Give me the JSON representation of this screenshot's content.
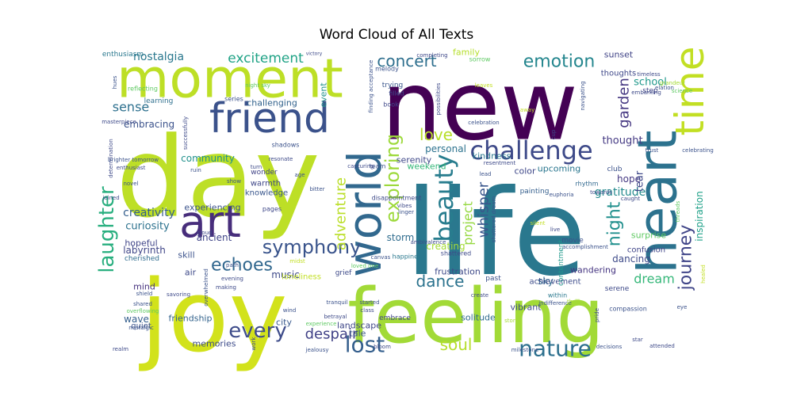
{
  "chart_data": {
    "type": "wordcloud",
    "title": "Word Cloud of All Texts",
    "colors": [
      "#440154",
      "#3b528b",
      "#21918c",
      "#5ec962",
      "#fde725"
    ],
    "words": [
      {
        "text": "new",
        "weight": 1.0,
        "color": "#440154"
      },
      {
        "text": "life",
        "weight": 0.96,
        "color": "#2a788e"
      },
      {
        "text": "day",
        "weight": 0.9,
        "color": "#bddf26"
      },
      {
        "text": "joy",
        "weight": 0.86,
        "color": "#d2e21b"
      },
      {
        "text": "feeling",
        "weight": 0.78,
        "color": "#a2da37"
      },
      {
        "text": "moment",
        "weight": 0.7,
        "color": "#bddf26"
      },
      {
        "text": "heart",
        "weight": 0.52,
        "color": "#2c728e"
      },
      {
        "text": "friend",
        "weight": 0.46,
        "color": "#3b528b"
      },
      {
        "text": "time",
        "weight": 0.44,
        "color": "#c2df23"
      },
      {
        "text": "art",
        "weight": 0.42,
        "color": "#472d7b"
      },
      {
        "text": "world",
        "weight": 0.4,
        "color": "#31688e"
      },
      {
        "text": "challenge",
        "weight": 0.3,
        "color": "#3e4a89"
      },
      {
        "text": "nature",
        "weight": 0.27,
        "color": "#2d708e"
      },
      {
        "text": "beauty",
        "weight": 0.26,
        "color": "#287d8e"
      },
      {
        "text": "every",
        "weight": 0.25,
        "color": "#3e4c8a"
      },
      {
        "text": "laughter",
        "weight": 0.24,
        "color": "#29af7f"
      },
      {
        "text": "lost",
        "weight": 0.24,
        "color": "#355f8d"
      },
      {
        "text": "journey",
        "weight": 0.23,
        "color": "#404588"
      },
      {
        "text": "symphony",
        "weight": 0.22,
        "color": "#3a548c"
      },
      {
        "text": "emotion",
        "weight": 0.21,
        "color": "#24868e"
      },
      {
        "text": "concert",
        "weight": 0.21,
        "color": "#2e6f8e"
      },
      {
        "text": "exploring",
        "weight": 0.21,
        "color": "#9dd93b"
      },
      {
        "text": "night",
        "weight": 0.21,
        "color": "#21908d"
      },
      {
        "text": "dance",
        "weight": 0.21,
        "color": "#2c738e"
      },
      {
        "text": "soul",
        "weight": 0.21,
        "color": "#b5de2b"
      },
      {
        "text": "echoes",
        "weight": 0.2,
        "color": "#31678e"
      },
      {
        "text": "despair",
        "weight": 0.19,
        "color": "#414287"
      },
      {
        "text": "dream",
        "weight": 0.18,
        "color": "#35b779"
      },
      {
        "text": "excitement",
        "weight": 0.18,
        "color": "#20a386"
      },
      {
        "text": "adventure",
        "weight": 0.17,
        "color": "#bade28"
      },
      {
        "text": "whisper",
        "weight": 0.17,
        "color": "#39568c"
      },
      {
        "text": "garden",
        "weight": 0.16,
        "color": "#453781"
      },
      {
        "text": "love",
        "weight": 0.15,
        "color": "#b8de29"
      },
      {
        "text": "sense",
        "weight": 0.14,
        "color": "#2d708e"
      },
      {
        "text": "project",
        "weight": 0.14,
        "color": "#95d840"
      },
      {
        "text": "creativity",
        "weight": 0.13,
        "color": "#355f8d"
      },
      {
        "text": "nostalgia",
        "weight": 0.12,
        "color": "#2a788e"
      },
      {
        "text": "gratitude",
        "weight": 0.12,
        "color": "#238a8d"
      },
      {
        "text": "thought",
        "weight": 0.12,
        "color": "#443983"
      },
      {
        "text": "curiosity",
        "weight": 0.11,
        "color": "#2c728e"
      },
      {
        "text": "school",
        "weight": 0.11,
        "color": "#1f988b"
      },
      {
        "text": "embracing",
        "weight": 0.1,
        "color": "#3b528b"
      },
      {
        "text": "labyrinth",
        "weight": 0.1,
        "color": "#404688"
      },
      {
        "text": "community",
        "weight": 0.1,
        "color": "#21918c"
      },
      {
        "text": "hope",
        "weight": 0.1,
        "color": "#453882"
      },
      {
        "text": "tear",
        "weight": 0.1,
        "color": "#3f4889"
      },
      {
        "text": "ancient",
        "weight": 0.1,
        "color": "#404588"
      },
      {
        "text": "music",
        "weight": 0.09,
        "color": "#3e4989"
      },
      {
        "text": "personal",
        "weight": 0.09,
        "color": "#2c728e"
      },
      {
        "text": "wave",
        "weight": 0.09,
        "color": "#355f8d"
      },
      {
        "text": "sky",
        "weight": 0.09,
        "color": "#31688e"
      },
      {
        "text": "inspiration",
        "weight": 0.09,
        "color": "#1fa188"
      },
      {
        "text": "storm",
        "weight": 0.09,
        "color": "#2f6c8e"
      },
      {
        "text": "dancing",
        "weight": 0.09,
        "color": "#3e4a89"
      },
      {
        "text": "challenging",
        "weight": 0.08,
        "color": "#33638d"
      },
      {
        "text": "upcoming",
        "weight": 0.08,
        "color": "#2a768e"
      },
      {
        "text": "sunset",
        "weight": 0.08,
        "color": "#414487"
      },
      {
        "text": "kindness",
        "weight": 0.08,
        "color": "#2a788e"
      },
      {
        "text": "creating",
        "weight": 0.08,
        "color": "#a5db36"
      },
      {
        "text": "experiencing",
        "weight": 0.08,
        "color": "#3b528b"
      },
      {
        "text": "color",
        "weight": 0.08,
        "color": "#3f4889"
      },
      {
        "text": "memories",
        "weight": 0.08,
        "color": "#3e4c8a"
      },
      {
        "text": "city",
        "weight": 0.08,
        "color": "#38588c"
      },
      {
        "text": "hopeful",
        "weight": 0.08,
        "color": "#404588"
      },
      {
        "text": "landscape",
        "weight": 0.07,
        "color": "#3f4788"
      },
      {
        "text": "solitude",
        "weight": 0.07,
        "color": "#2f6b8e"
      },
      {
        "text": "vibrant",
        "weight": 0.07,
        "color": "#3e4a89"
      },
      {
        "text": "friendship",
        "weight": 0.07,
        "color": "#33638d"
      },
      {
        "text": "family",
        "weight": 0.07,
        "color": "#b5de2b"
      },
      {
        "text": "surprise",
        "weight": 0.07,
        "color": "#5ec962"
      },
      {
        "text": "tale",
        "weight": 0.07,
        "color": "#3a548c"
      },
      {
        "text": "wandering",
        "weight": 0.07,
        "color": "#453581"
      },
      {
        "text": "mind",
        "weight": 0.07,
        "color": "#46327e"
      },
      {
        "text": "skill",
        "weight": 0.07,
        "color": "#3b528b"
      },
      {
        "text": "weekend",
        "weight": 0.07,
        "color": "#35b779"
      },
      {
        "text": "serenity",
        "weight": 0.07,
        "color": "#3f4889"
      },
      {
        "text": "frustration",
        "weight": 0.07,
        "color": "#3e4a89"
      },
      {
        "text": "knowledge",
        "weight": 0.06,
        "color": "#39568c"
      },
      {
        "text": "warmth",
        "weight": 0.06,
        "color": "#3f4788"
      },
      {
        "text": "confusion",
        "weight": 0.06,
        "color": "#404588"
      },
      {
        "text": "achievement",
        "weight": 0.06,
        "color": "#3e4c8a"
      },
      {
        "text": "air",
        "weight": 0.06,
        "color": "#3e4a89"
      },
      {
        "text": "quiet",
        "weight": 0.06,
        "color": "#3b528b"
      },
      {
        "text": "thoughts",
        "weight": 0.06,
        "color": "#3f4889"
      },
      {
        "text": "cherished",
        "weight": 0.05,
        "color": "#2f6c8e"
      },
      {
        "text": "event",
        "weight": 0.05,
        "color": "#21918c"
      },
      {
        "text": "step",
        "weight": 0.05,
        "color": "#404688"
      },
      {
        "text": "learning",
        "weight": 0.05,
        "color": "#2e6f8e"
      },
      {
        "text": "wonder",
        "weight": 0.05,
        "color": "#414487"
      },
      {
        "text": "painting",
        "weight": 0.05,
        "color": "#355f8d"
      },
      {
        "text": "enthusiasm",
        "weight": 0.05,
        "color": "#2a788e"
      },
      {
        "text": "rhythm",
        "weight": 0.05,
        "color": "#31688e"
      },
      {
        "text": "club",
        "weight": 0.05,
        "color": "#3b528b"
      },
      {
        "text": "trying",
        "weight": 0.05,
        "color": "#39568c"
      },
      {
        "text": "pages",
        "weight": 0.05,
        "color": "#3f4889"
      },
      {
        "text": "grief",
        "weight": 0.05,
        "color": "#3e4a89"
      },
      {
        "text": "past",
        "weight": 0.05,
        "color": "#3b528b"
      },
      {
        "text": "embrace",
        "weight": 0.05,
        "color": "#404588"
      },
      {
        "text": "contentment",
        "weight": 0.05,
        "color": "#1f988b"
      },
      {
        "text": "within",
        "weight": 0.05,
        "color": "#2a788e"
      },
      {
        "text": "movie",
        "weight": 0.05,
        "color": "#3b528b"
      },
      {
        "text": "serene",
        "weight": 0.05,
        "color": "#3e4a89"
      },
      {
        "text": "compassion",
        "weight": 0.05,
        "color": "#3b528b"
      },
      {
        "text": "loneliness",
        "weight": 0.05,
        "color": "#c2df23"
      },
      {
        "text": "filled",
        "weight": 0.04,
        "color": "#3e4a89"
      },
      {
        "text": "book",
        "weight": 0.04,
        "color": "#3f4889"
      },
      {
        "text": "shadows",
        "weight": 0.04,
        "color": "#3b528b"
      },
      {
        "text": "team",
        "weight": 0.04,
        "color": "#3b528b"
      },
      {
        "text": "happiness",
        "weight": 0.04,
        "color": "#2a788e"
      },
      {
        "text": "shattered",
        "weight": 0.04,
        "color": "#3e4a89"
      },
      {
        "text": "sorrow",
        "weight": 0.04,
        "color": "#5ec962"
      },
      {
        "text": "melody",
        "weight": 0.04,
        "color": "#3b528b"
      },
      {
        "text": "completing",
        "weight": 0.04,
        "color": "#3f4889"
      },
      {
        "text": "elation",
        "weight": 0.04,
        "color": "#3b528b"
      },
      {
        "text": "embarking",
        "weight": 0.04,
        "color": "#3e4a89"
      },
      {
        "text": "reflecting",
        "weight": 0.04,
        "color": "#5ec962"
      },
      {
        "text": "series",
        "weight": 0.04,
        "color": "#3b528b"
      },
      {
        "text": "victory",
        "weight": 0.04,
        "color": "#3e4a89"
      },
      {
        "text": "ruin",
        "weight": 0.04,
        "color": "#3b528b"
      },
      {
        "text": "turn",
        "weight": 0.04,
        "color": "#3e4a89"
      },
      {
        "text": "show",
        "weight": 0.04,
        "color": "#3b528b"
      },
      {
        "text": "joined",
        "weight": 0.04,
        "color": "#3e4a89"
      },
      {
        "text": "nostalgic",
        "weight": 0.04,
        "color": "#3b528b"
      },
      {
        "text": "savoring",
        "weight": 0.04,
        "color": "#3e4a89"
      },
      {
        "text": "path",
        "weight": 0.04,
        "color": "#3b528b"
      },
      {
        "text": "making",
        "weight": 0.04,
        "color": "#3e4a89"
      },
      {
        "text": "started",
        "weight": 0.04,
        "color": "#3b528b"
      },
      {
        "text": "class",
        "weight": 0.04,
        "color": "#3e4a89"
      },
      {
        "text": "tranquil",
        "weight": 0.04,
        "color": "#3b528b"
      },
      {
        "text": "create",
        "weight": 0.04,
        "color": "#3e4a89"
      },
      {
        "text": "canvas",
        "weight": 0.04,
        "color": "#3b528b"
      },
      {
        "text": "betrayal",
        "weight": 0.04,
        "color": "#3e4a89"
      },
      {
        "text": "indifference",
        "weight": 0.04,
        "color": "#3b528b"
      },
      {
        "text": "story",
        "weight": 0.04,
        "color": "#a5db36"
      },
      {
        "text": "bloom",
        "weight": 0.04,
        "color": "#3e4a89"
      },
      {
        "text": "milestone",
        "weight": 0.04,
        "color": "#3b528b"
      },
      {
        "text": "attended",
        "weight": 0.04,
        "color": "#3e4a89"
      },
      {
        "text": "decisions",
        "weight": 0.04,
        "color": "#3b528b"
      },
      {
        "text": "star",
        "weight": 0.04,
        "color": "#3e4a89"
      },
      {
        "text": "eye",
        "weight": 0.04,
        "color": "#3b528b"
      },
      {
        "text": "thrill",
        "weight": 0.04,
        "color": "#a5db36"
      },
      {
        "text": "live",
        "weight": 0.04,
        "color": "#3e4a89"
      },
      {
        "text": "trust",
        "weight": 0.04,
        "color": "#3b528b"
      },
      {
        "text": "caught",
        "weight": 0.04,
        "color": "#3e4a89"
      },
      {
        "text": "threads",
        "weight": 0.04,
        "color": "#5ec962"
      },
      {
        "text": "celebrating",
        "weight": 0.04,
        "color": "#3b528b"
      },
      {
        "text": "timeless",
        "weight": 0.04,
        "color": "#3e4a89"
      },
      {
        "text": "grandeur",
        "weight": 0.04,
        "color": "#a5db36"
      },
      {
        "text": "science",
        "weight": 0.04,
        "color": "#5ec962"
      },
      {
        "text": "navigating",
        "weight": 0.04,
        "color": "#3b528b"
      },
      {
        "text": "towards",
        "weight": 0.04,
        "color": "#3e4a89"
      },
      {
        "text": "euphoria",
        "weight": 0.04,
        "color": "#3b528b"
      },
      {
        "text": "resentment",
        "weight": 0.04,
        "color": "#3e4a89"
      },
      {
        "text": "lead",
        "weight": 0.04,
        "color": "#3b528b"
      },
      {
        "text": "capturing",
        "weight": 0.04,
        "color": "#3e4a89"
      },
      {
        "text": "age",
        "weight": 0.04,
        "color": "#3b528b"
      },
      {
        "text": "resonate",
        "weight": 0.04,
        "color": "#3e4a89"
      },
      {
        "text": "bitter",
        "weight": 0.04,
        "color": "#3b528b"
      },
      {
        "text": "vibes",
        "weight": 0.04,
        "color": "#3e4a89"
      },
      {
        "text": "linger",
        "weight": 0.04,
        "color": "#3b528b"
      },
      {
        "text": "loved one",
        "weight": 0.04,
        "color": "#5ec962"
      },
      {
        "text": "ambivalence",
        "weight": 0.04,
        "color": "#3e4a89"
      },
      {
        "text": "experience",
        "weight": 0.04,
        "color": "#5ec962"
      },
      {
        "text": "wind",
        "weight": 0.04,
        "color": "#3b528b"
      },
      {
        "text": "midst",
        "weight": 0.04,
        "color": "#c2df23"
      },
      {
        "text": "work",
        "weight": 0.04,
        "color": "#3e4a89"
      },
      {
        "text": "jealousy",
        "weight": 0.04,
        "color": "#3b528b"
      },
      {
        "text": "realm",
        "weight": 0.04,
        "color": "#3e4a89"
      },
      {
        "text": "shared",
        "weight": 0.04,
        "color": "#3b528b"
      },
      {
        "text": "overflowing",
        "weight": 0.04,
        "color": "#5ec962"
      },
      {
        "text": "evening",
        "weight": 0.04,
        "color": "#3e4a89"
      },
      {
        "text": "overwhelmed",
        "weight": 0.04,
        "color": "#3b528b"
      },
      {
        "text": "cloud",
        "weight": 0.04,
        "color": "#3e4a89"
      },
      {
        "text": "shield",
        "weight": 0.04,
        "color": "#3b528b"
      },
      {
        "text": "determination",
        "weight": 0.04,
        "color": "#3e4a89"
      },
      {
        "text": "brighter tomorrow",
        "weight": 0.04,
        "color": "#3b528b"
      },
      {
        "text": "enthusiast",
        "weight": 0.04,
        "color": "#3e4a89"
      },
      {
        "text": "novel",
        "weight": 0.04,
        "color": "#3b528b"
      },
      {
        "text": "masterpiece",
        "weight": 0.04,
        "color": "#3e4a89"
      },
      {
        "text": "hues",
        "weight": 0.04,
        "color": "#3b528b"
      },
      {
        "text": "night sky",
        "weight": 0.04,
        "color": "#5ec962"
      },
      {
        "text": "successfully",
        "weight": 0.04,
        "color": "#3e4a89"
      },
      {
        "text": "finding acceptance",
        "weight": 0.04,
        "color": "#3b528b"
      },
      {
        "text": "possibilities",
        "weight": 0.04,
        "color": "#3e4a89"
      },
      {
        "text": "leaves",
        "weight": 0.04,
        "color": "#c2df23"
      },
      {
        "text": "celebration",
        "weight": 0.04,
        "color": "#3b528b"
      },
      {
        "text": "away",
        "weight": 0.04,
        "color": "#c2df23"
      },
      {
        "text": "cup",
        "weight": 0.04,
        "color": "#3e4a89"
      },
      {
        "text": "accomplishment",
        "weight": 0.04,
        "color": "#3b528b"
      },
      {
        "text": "pride",
        "weight": 0.04,
        "color": "#3e4a89"
      },
      {
        "text": "shattered dream",
        "weight": 0.04,
        "color": "#3b528b"
      },
      {
        "text": "silent",
        "weight": 0.04,
        "color": "#c2df23"
      },
      {
        "text": "healed",
        "weight": 0.04,
        "color": "#c2df23"
      },
      {
        "text": "disappointment",
        "weight": 0.04,
        "color": "#3e4a89"
      }
    ]
  }
}
